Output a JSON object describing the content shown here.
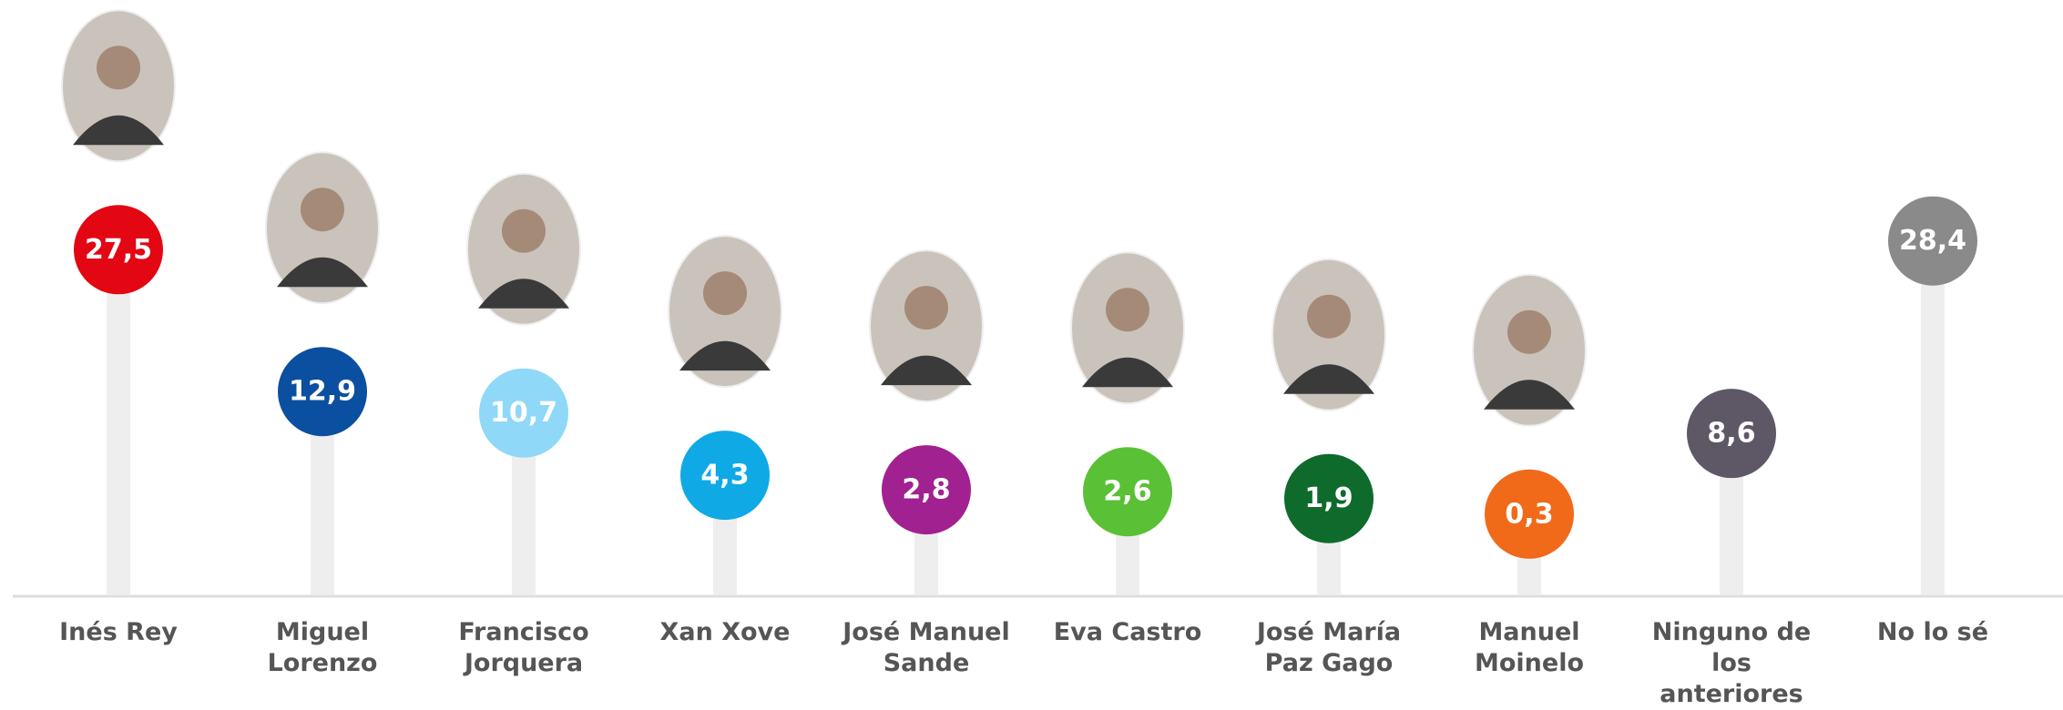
{
  "chart_data": {
    "type": "lollipop",
    "categories": [
      "Inés Rey",
      "Miguel Lorenzo",
      "Francisco Jorquera",
      "Xan Xove",
      "José Manuel Sande",
      "Eva Castro",
      "José María Paz Gago",
      "Manuel Moinelo",
      "Ninguno de los anteriores",
      "No lo sé"
    ],
    "values": [
      27.5,
      12.9,
      10.7,
      4.3,
      2.8,
      2.6,
      1.9,
      0.3,
      8.6,
      28.4
    ],
    "value_labels": [
      "27,5",
      "12,9",
      "10,7",
      "4,3",
      "2,8",
      "2,6",
      "1,9",
      "0,3",
      "8,6",
      "28,4"
    ],
    "colors": [
      "#e30613",
      "#0b4fa0",
      "#8fd8f8",
      "#0fa9e6",
      "#a0218f",
      "#5ac036",
      "#0e6b2b",
      "#f06a1a",
      "#5e5766",
      "#8a8a8a"
    ],
    "photos": [
      true,
      true,
      true,
      true,
      true,
      true,
      true,
      true,
      false,
      false
    ]
  }
}
